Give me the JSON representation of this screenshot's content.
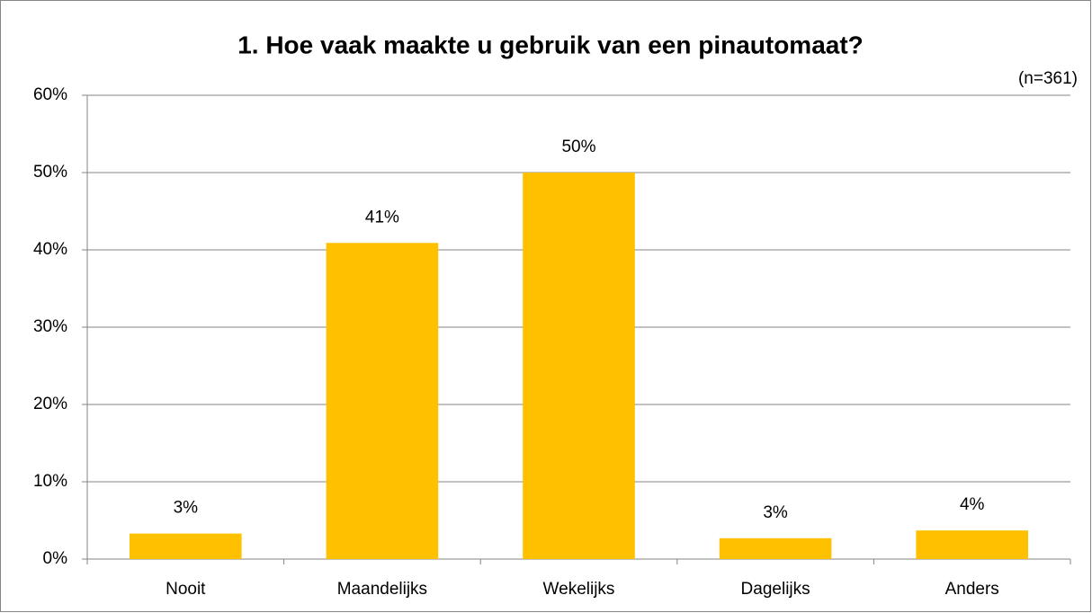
{
  "chart_data": {
    "type": "bar",
    "title": "1. Hoe vaak maakte u gebruik van een pinautomaat?",
    "subtitle": "(n=361)",
    "categories": [
      "Nooit",
      "Maandelijks",
      "Wekelijks",
      "Dagelijks",
      "Anders"
    ],
    "values": [
      3.3,
      40.9,
      50,
      2.7,
      3.7
    ],
    "value_labels": [
      "3%",
      "41%",
      "50%",
      "3%",
      "4%"
    ],
    "color": "#ffc000",
    "ylim": [
      0,
      60
    ],
    "yticks": [
      {
        "value": 0,
        "label": "0%"
      },
      {
        "value": 10,
        "label": "10%"
      },
      {
        "value": 20,
        "label": "20%"
      },
      {
        "value": 30,
        "label": "30%"
      },
      {
        "value": 40,
        "label": "40%"
      },
      {
        "value": 50,
        "label": "50%"
      },
      {
        "value": 60,
        "label": "60%"
      }
    ],
    "grid": true
  }
}
